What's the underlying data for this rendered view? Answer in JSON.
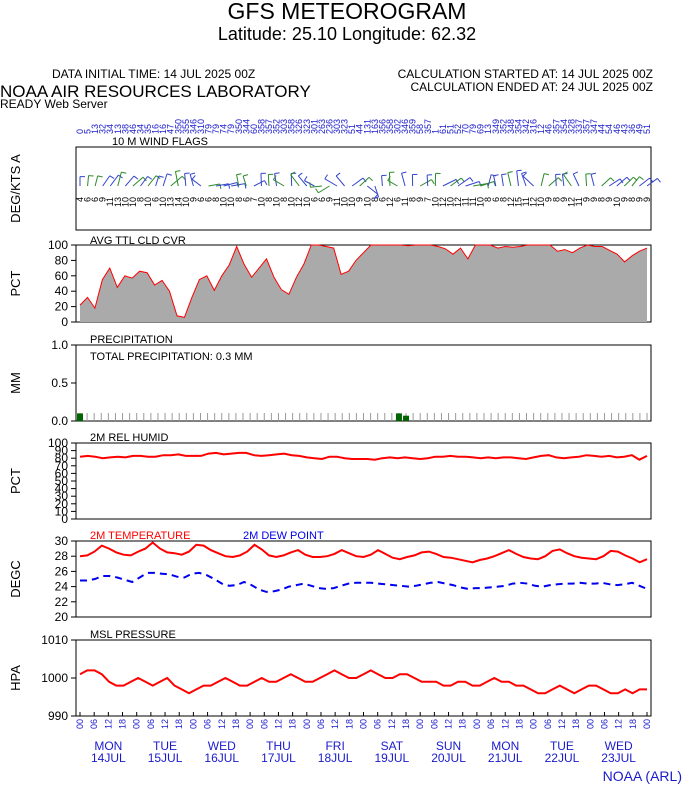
{
  "header": {
    "title": "GFS METEOROGRAM",
    "subtitle": "Latitude: 25.10 Longitude:  62.32",
    "data_initial_time": "DATA INITIAL TIME: 14 JUL 2025 00Z",
    "calc_started": "CALCULATION STARTED AT: 14 JUL 2025 00Z",
    "calc_ended": "CALCULATION ENDED AT: 24 JUL 2025 00Z",
    "lab": "NOAA AIR RESOURCES LABORATORY",
    "server": "READY Web Server"
  },
  "footer": "NOAA (ARL)",
  "colors": {
    "red": "#ff0000",
    "blue": "#0000ee",
    "green": "#006400",
    "gray": "#aaaaaa",
    "axis_text": "#1a1acc"
  },
  "chart_data": [
    {
      "type": "wind-flags",
      "panel_label": "10 M  WIND FLAGS",
      "ylabel": "DEG/KTS  A",
      "top_labels": [
        "0",
        "5",
        "13",
        "32",
        "34",
        "13",
        "38",
        "46",
        "34",
        "35",
        "16",
        "16",
        "47",
        "350",
        "355",
        "346",
        "310",
        "79",
        "79",
        "74",
        "79",
        "350",
        "344",
        "60",
        "358",
        "357",
        "352",
        "303",
        "358",
        "326",
        "323",
        "301",
        "263",
        "236",
        "303",
        "323",
        "51",
        "44",
        "131",
        "163",
        "356",
        "358",
        "302",
        "346",
        "359",
        "58",
        "357",
        "1",
        "61",
        "51",
        "52",
        "70",
        "79",
        "69",
        "13",
        "349",
        "352",
        "348",
        "354",
        "342",
        "316",
        "12",
        "46",
        "357",
        "354",
        "328",
        "337",
        "357",
        "347",
        "44",
        "54",
        "46",
        "43",
        "36",
        "49",
        "51"
      ],
      "bottom_labels": [
        "4",
        "6",
        "6",
        "9",
        "11",
        "13",
        "10",
        "10",
        "8",
        "10",
        "6",
        "10",
        "13",
        "14",
        "10",
        "9",
        "6",
        "6",
        "8",
        "10",
        "10",
        "8",
        "6",
        "7",
        "10",
        "8",
        "10",
        "8",
        "10",
        "12",
        "10",
        "6",
        "6",
        "9",
        "11",
        "10",
        "10",
        "9",
        "10",
        "8",
        "6",
        "12",
        "6",
        "11",
        "8",
        "9",
        "7",
        "10",
        "12",
        "10",
        "12",
        "11",
        "11",
        "10",
        "8",
        "6",
        "8",
        "12",
        "15",
        "11",
        "12",
        "10",
        "9",
        "8",
        "9",
        "12",
        "11",
        "9",
        "9",
        "8",
        "9",
        "10",
        "9",
        "8",
        "9",
        "9"
      ]
    },
    {
      "type": "area",
      "panel_label": "AVG TTL CLD CVR",
      "ylabel": "PCT",
      "ylim": [
        0,
        100
      ],
      "yticks": [
        "0",
        "20",
        "40",
        "60",
        "80",
        "100"
      ],
      "values": [
        22,
        32,
        18,
        55,
        70,
        45,
        60,
        57,
        66,
        64,
        48,
        54,
        40,
        8,
        6,
        32,
        55,
        60,
        41,
        60,
        74,
        98,
        75,
        58,
        70,
        82,
        58,
        42,
        36,
        58,
        75,
        102,
        100,
        98,
        96,
        62,
        66,
        80,
        90,
        100,
        101,
        100,
        100,
        100,
        99,
        100,
        100,
        100,
        98,
        95,
        88,
        96,
        82,
        100,
        102,
        100,
        96,
        98,
        97,
        98,
        100,
        102,
        101,
        100,
        92,
        94,
        90,
        96,
        100,
        98,
        98,
        93,
        88,
        78,
        86,
        92,
        96
      ]
    },
    {
      "type": "bar",
      "panel_label": "PRECIPITATION",
      "annotation": "TOTAL PRECIPITATION:   0.3 MM",
      "ylabel": "MM",
      "ylim": [
        0,
        1.0
      ],
      "yticks": [
        "0.0",
        "0.5",
        "1.0"
      ],
      "values": [
        0.1,
        0,
        0,
        0,
        0,
        0,
        0,
        0,
        0,
        0,
        0,
        0,
        0,
        0,
        0,
        0,
        0,
        0,
        0,
        0,
        0,
        0,
        0,
        0,
        0,
        0,
        0,
        0,
        0,
        0,
        0,
        0,
        0,
        0,
        0,
        0,
        0,
        0,
        0,
        0,
        0,
        0,
        0,
        0,
        0,
        0.1,
        0.07,
        0,
        0,
        0,
        0,
        0,
        0,
        0,
        0,
        0,
        0,
        0,
        0,
        0,
        0,
        0,
        0,
        0,
        0,
        0,
        0,
        0,
        0,
        0,
        0,
        0,
        0,
        0,
        0,
        0,
        0,
        0,
        0,
        0,
        0
      ]
    },
    {
      "type": "line",
      "panel_label": "2M REL HUMID",
      "ylabel": "PCT",
      "ylim": [
        0,
        100
      ],
      "yticks": [
        "0",
        "10",
        "20",
        "30",
        "40",
        "50",
        "60",
        "70",
        "80",
        "90",
        "100"
      ],
      "values": [
        82,
        83,
        82,
        80,
        81,
        82,
        81,
        83,
        83,
        82,
        82,
        84,
        84,
        85,
        83,
        83,
        83,
        86,
        87,
        85,
        86,
        87,
        87,
        84,
        83,
        84,
        85,
        86,
        84,
        83,
        81,
        80,
        79,
        82,
        82,
        80,
        79,
        79,
        79,
        78,
        80,
        81,
        80,
        81,
        80,
        79,
        80,
        82,
        82,
        83,
        82,
        82,
        81,
        80,
        81,
        80,
        81,
        81,
        80,
        79,
        81,
        83,
        84,
        81,
        80,
        81,
        82,
        84,
        83,
        82,
        83,
        81,
        82,
        84,
        78,
        83
      ]
    },
    {
      "type": "line",
      "panel_label_a": "2M TEMPERATURE",
      "panel_label_b": "2M   DEW POINT",
      "ylabel": "DEGC",
      "ylim": [
        20,
        30
      ],
      "yticks": [
        "20",
        "22",
        "24",
        "26",
        "28",
        "30"
      ],
      "series": [
        {
          "name": "2M TEMPERATURE",
          "values": [
            28.0,
            28.1,
            28.6,
            29.4,
            29.0,
            28.5,
            28.2,
            28.1,
            28.6,
            29.0,
            29.8,
            29.0,
            28.5,
            28.4,
            28.2,
            28.6,
            29.5,
            29.4,
            28.8,
            28.4,
            28.0,
            27.9,
            28.1,
            28.6,
            29.5,
            28.9,
            28.1,
            27.9,
            28.1,
            28.5,
            28.8,
            28.2,
            27.9,
            27.9,
            28.0,
            28.3,
            28.8,
            28.4,
            28.0,
            27.9,
            28.2,
            28.8,
            28.3,
            27.8,
            27.6,
            27.9,
            28.1,
            28.5,
            28.6,
            28.3,
            27.9,
            27.8,
            27.6,
            27.4,
            27.2,
            27.5,
            27.7,
            28.0,
            28.4,
            28.8,
            28.3,
            27.9,
            27.7,
            27.6,
            28.0,
            28.7,
            28.9,
            28.4,
            28.0,
            27.8,
            27.7,
            27.6,
            28.0,
            28.7,
            28.6,
            28.1,
            27.7,
            27.2,
            27.6
          ]
        },
        {
          "name": "2M   DEW POINT",
          "values": [
            24.8,
            24.8,
            25.0,
            25.4,
            25.4,
            25.2,
            24.9,
            24.6,
            25.2,
            25.8,
            25.8,
            25.7,
            25.6,
            25.3,
            25.2,
            25.7,
            25.8,
            25.5,
            25.0,
            24.4,
            24.1,
            24.2,
            24.6,
            24.2,
            23.6,
            23.3,
            23.4,
            23.6,
            24.0,
            24.2,
            24.4,
            24.1,
            23.8,
            23.7,
            23.8,
            24.1,
            24.4,
            24.5,
            24.5,
            24.5,
            24.4,
            24.3,
            24.2,
            24.1,
            24.0,
            24.1,
            24.3,
            24.5,
            24.6,
            24.4,
            24.2,
            23.9,
            23.7,
            23.8,
            23.8,
            23.9,
            24.0,
            24.1,
            24.4,
            24.5,
            24.4,
            24.1,
            24.0,
            24.2,
            24.3,
            24.4,
            24.4,
            24.5,
            24.4,
            24.4,
            24.5,
            24.3,
            24.2,
            24.3,
            24.5,
            24.1,
            23.7
          ]
        }
      ]
    },
    {
      "type": "line",
      "panel_label": "MSL PRESSURE",
      "ylabel": "HPA",
      "ylim": [
        990,
        1010
      ],
      "yticks": [
        "990",
        "1000",
        "1010"
      ],
      "values": [
        1001,
        1002,
        1002,
        1001,
        999,
        998,
        998,
        999,
        1000,
        999,
        998,
        999,
        1000,
        998,
        997,
        996,
        997,
        998,
        998,
        999,
        1000,
        999,
        998,
        998,
        999,
        1000,
        999,
        999,
        1000,
        1001,
        1000,
        999,
        999,
        1000,
        1001,
        1002,
        1001,
        1000,
        1000,
        1001,
        1002,
        1001,
        1000,
        1000,
        1001,
        1001,
        1000,
        999,
        999,
        999,
        998,
        998,
        999,
        999,
        998,
        998,
        999,
        1000,
        999,
        999,
        998,
        998,
        997,
        996,
        996,
        997,
        998,
        997,
        996,
        997,
        998,
        998,
        997,
        996,
        996,
        997,
        996,
        997,
        997
      ]
    },
    {
      "type": "time-axis",
      "hour_labels": [
        "00",
        "06",
        "12",
        "18",
        "00",
        "06",
        "12",
        "18",
        "00",
        "06",
        "12",
        "18",
        "00",
        "06",
        "12",
        "18",
        "00",
        "06",
        "12",
        "18",
        "00",
        "06",
        "12",
        "18",
        "00",
        "06",
        "12",
        "18",
        "00",
        "06",
        "12",
        "18",
        "00",
        "06",
        "12",
        "18",
        "00",
        "06",
        "12",
        "18",
        "00"
      ],
      "day_labels": [
        "MON",
        "TUE",
        "WED",
        "THU",
        "FRI",
        "SAT",
        "SUN",
        "MON",
        "TUE",
        "WED"
      ],
      "date_labels": [
        "14JUL",
        "15JUL",
        "16JUL",
        "17JUL",
        "18JUL",
        "19JUL",
        "20JUL",
        "21JUL",
        "22JUL",
        "23JUL"
      ]
    }
  ]
}
